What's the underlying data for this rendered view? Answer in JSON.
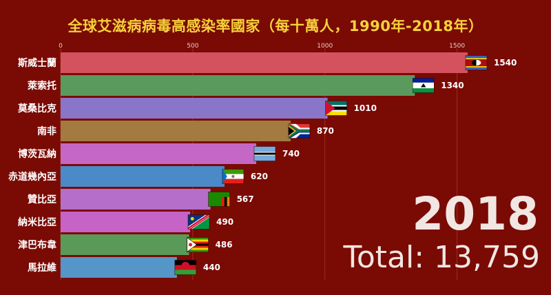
{
  "title": "全球艾滋病病毒高感染率國家（每十萬人，1990年-2018年）",
  "year": "2018",
  "total_label": "Total:",
  "total_value": "13,759",
  "chart_data": {
    "type": "bar",
    "orientation": "horizontal",
    "xlim": [
      0,
      1600
    ],
    "ticks": [
      0,
      500,
      1000,
      1500
    ],
    "grid": true,
    "categories": [
      "斯威士蘭",
      "萊索托",
      "莫桑比克",
      "南非",
      "博茨瓦納",
      "赤道幾內亞",
      "贊比亞",
      "納米比亞",
      "津巴布韋",
      "馬拉維"
    ],
    "values": [
      1540,
      1340,
      1010,
      870,
      740,
      620,
      567,
      490,
      486,
      440
    ],
    "colors": [
      "#d4525e",
      "#5a9a5c",
      "#8a76c9",
      "#a37a3f",
      "#c567c4",
      "#4a8ac8",
      "#b56fcb",
      "#c563c6",
      "#5a9a58",
      "#5596c9"
    ],
    "flags": [
      "eswatini-flag",
      "lesotho-flag",
      "mozambique-flag",
      "south-africa-flag",
      "botswana-flag",
      "equatorial-guinea-flag",
      "zambia-flag",
      "namibia-flag",
      "zimbabwe-flag",
      "malawi-flag"
    ]
  }
}
